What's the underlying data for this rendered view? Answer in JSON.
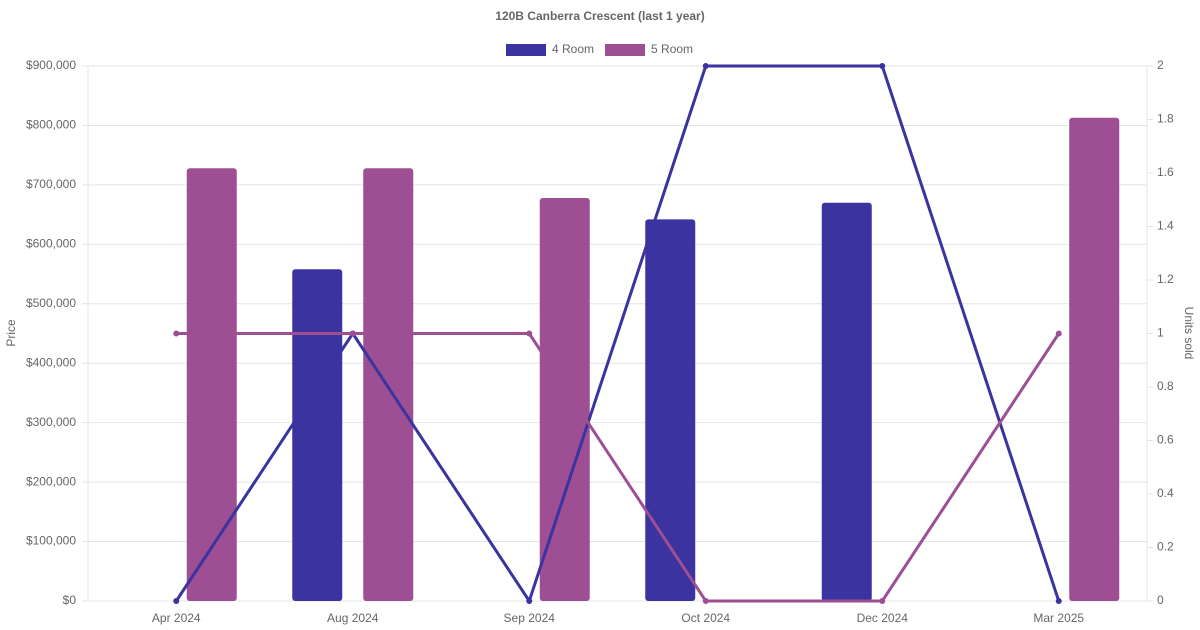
{
  "chart_data": {
    "type": "bar-line",
    "title": "120B Canberra Crescent (last 1 year)",
    "y_label": "Price",
    "y2_label": "Units sold",
    "categories": [
      "Apr 2024",
      "Aug 2024",
      "Sep 2024",
      "Oct 2024",
      "Dec 2024",
      "Mar 2025"
    ],
    "series": [
      {
        "name": "4 Room",
        "color": "#3a33a0",
        "values": [
          null,
          558000,
          null,
          642000,
          670000,
          null
        ],
        "units": [
          0,
          1,
          0,
          2,
          2,
          0
        ]
      },
      {
        "name": "5 Room",
        "color": "#9e4f94",
        "values": [
          728000,
          728000,
          678000,
          null,
          null,
          813000
        ],
        "units": [
          1,
          1,
          1,
          0,
          0,
          1
        ]
      }
    ],
    "ylim": [
      0,
      900000
    ],
    "yticks": [
      {
        "value": 0,
        "label": "$0"
      },
      {
        "value": 100000,
        "label": "$100,000"
      },
      {
        "value": 200000,
        "label": "$200,000"
      },
      {
        "value": 300000,
        "label": "$300,000"
      },
      {
        "value": 400000,
        "label": "$400,000"
      },
      {
        "value": 500000,
        "label": "$500,000"
      },
      {
        "value": 600000,
        "label": "$600,000"
      },
      {
        "value": 700000,
        "label": "$700,000"
      },
      {
        "value": 800000,
        "label": "$800,000"
      },
      {
        "value": 900000,
        "label": "$900,000"
      }
    ],
    "y2lim": [
      0,
      2
    ],
    "y2ticks": [
      0,
      0.2,
      0.4,
      0.6,
      0.8,
      1,
      1.2,
      1.4,
      1.6,
      1.8,
      2
    ],
    "grid": true
  }
}
